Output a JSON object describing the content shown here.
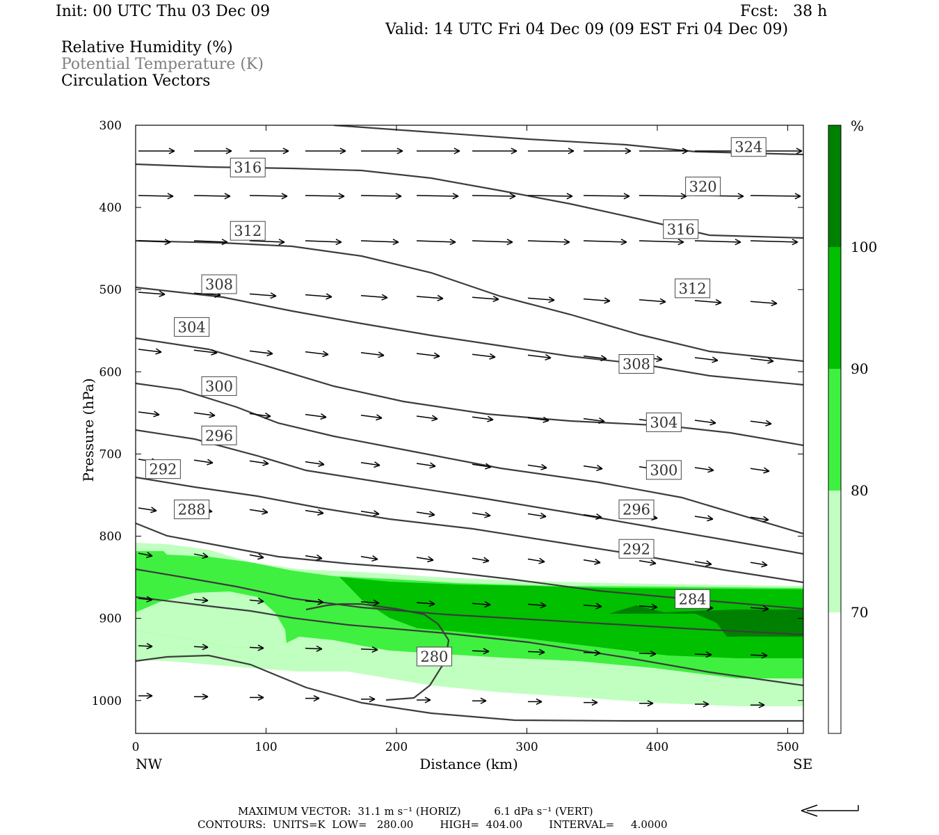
{
  "header": {
    "init": "Init: 00 UTC Thu 03 Dec 09",
    "fcst": "Fcst:   38 h",
    "valid": "Valid: 14 UTC Fri 04 Dec 09 (09 EST Fri 04 Dec 09)",
    "field1": "Relative Humidity (%)",
    "field2": "Potential Temperature (K)",
    "field3": "Circulation Vectors"
  },
  "colors": {
    "rh70": "#c0ffc0",
    "rh80": "#40f040",
    "rh90": "#00c000",
    "rh100": "#008000",
    "theta_line": "#3c3c3c",
    "vector": "#000000"
  },
  "footer": {
    "max_vector": "MAXIMUM VECTOR:  31.1 m s⁻¹ (HORIZ)          6.1 dPa s⁻¹ (VERT)",
    "contours": "CONTOURS:  UNITS=K  LOW=   280.00        HIGH=  404.00        INTERVAL=     4.0000"
  },
  "chart_data": {
    "type": "contour",
    "xlabel": "Distance (km)",
    "ylabel": "Pressure (hPa)",
    "xlim": [
      0,
      512
    ],
    "ylim": [
      1040,
      300
    ],
    "x_ticks": [
      0,
      100,
      200,
      300,
      400,
      500
    ],
    "y_ticks": [
      300,
      400,
      500,
      600,
      700,
      800,
      900,
      1000
    ],
    "x_left_label": "NW",
    "x_right_label": "SE",
    "colorbar": {
      "unit": "%",
      "levels": [
        "100",
        "90",
        "80",
        "70"
      ],
      "colors": [
        "#008000",
        "#00c000",
        "#40f040",
        "#c0ffc0",
        "#ffffff"
      ]
    },
    "theta_labels": [
      {
        "value": "324",
        "x": 470,
        "p": 326
      },
      {
        "value": "316",
        "x": 86,
        "p": 351
      },
      {
        "value": "320",
        "x": 435,
        "p": 374
      },
      {
        "value": "312",
        "x": 86,
        "p": 428
      },
      {
        "value": "316",
        "x": 418,
        "p": 426
      },
      {
        "value": "308",
        "x": 64,
        "p": 493
      },
      {
        "value": "312",
        "x": 427,
        "p": 498
      },
      {
        "value": "304",
        "x": 43,
        "p": 545
      },
      {
        "value": "308",
        "x": 384,
        "p": 590
      },
      {
        "value": "300",
        "x": 64,
        "p": 617
      },
      {
        "value": "304",
        "x": 405,
        "p": 661
      },
      {
        "value": "296",
        "x": 64,
        "p": 677
      },
      {
        "value": "292",
        "x": 21,
        "p": 718
      },
      {
        "value": "300",
        "x": 405,
        "p": 719
      },
      {
        "value": "288",
        "x": 43,
        "p": 767
      },
      {
        "value": "296",
        "x": 384,
        "p": 767
      },
      {
        "value": "292",
        "x": 384,
        "p": 815
      },
      {
        "value": "284",
        "x": 427,
        "p": 876
      },
      {
        "value": "280",
        "x": 229,
        "p": 946
      }
    ]
  }
}
